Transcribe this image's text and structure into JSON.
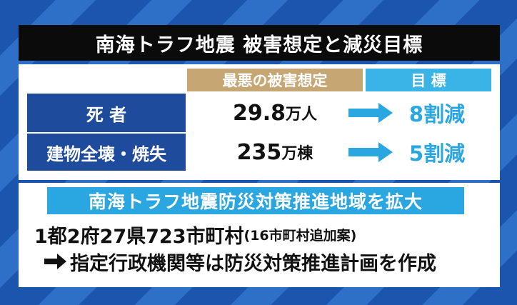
{
  "title": "南海トラフ地震 被害想定と減災目標",
  "table": {
    "headers": [
      "最悪の被害想定",
      "目 標"
    ],
    "rows": [
      {
        "label": "死 者",
        "value": "29.8",
        "unit": "万人",
        "target": "8割減"
      },
      {
        "label": "建物全壊・焼失",
        "value": "235",
        "unit": "万棟",
        "target": "5割減"
      }
    ]
  },
  "banner": "南海トラフ地震防災対策推進地域を拡大",
  "areas": {
    "main": "1都2府27県723市町村",
    "note": "(16市町村追加案)"
  },
  "action": "指定行政機関等は防災対策推進計画を作成"
}
